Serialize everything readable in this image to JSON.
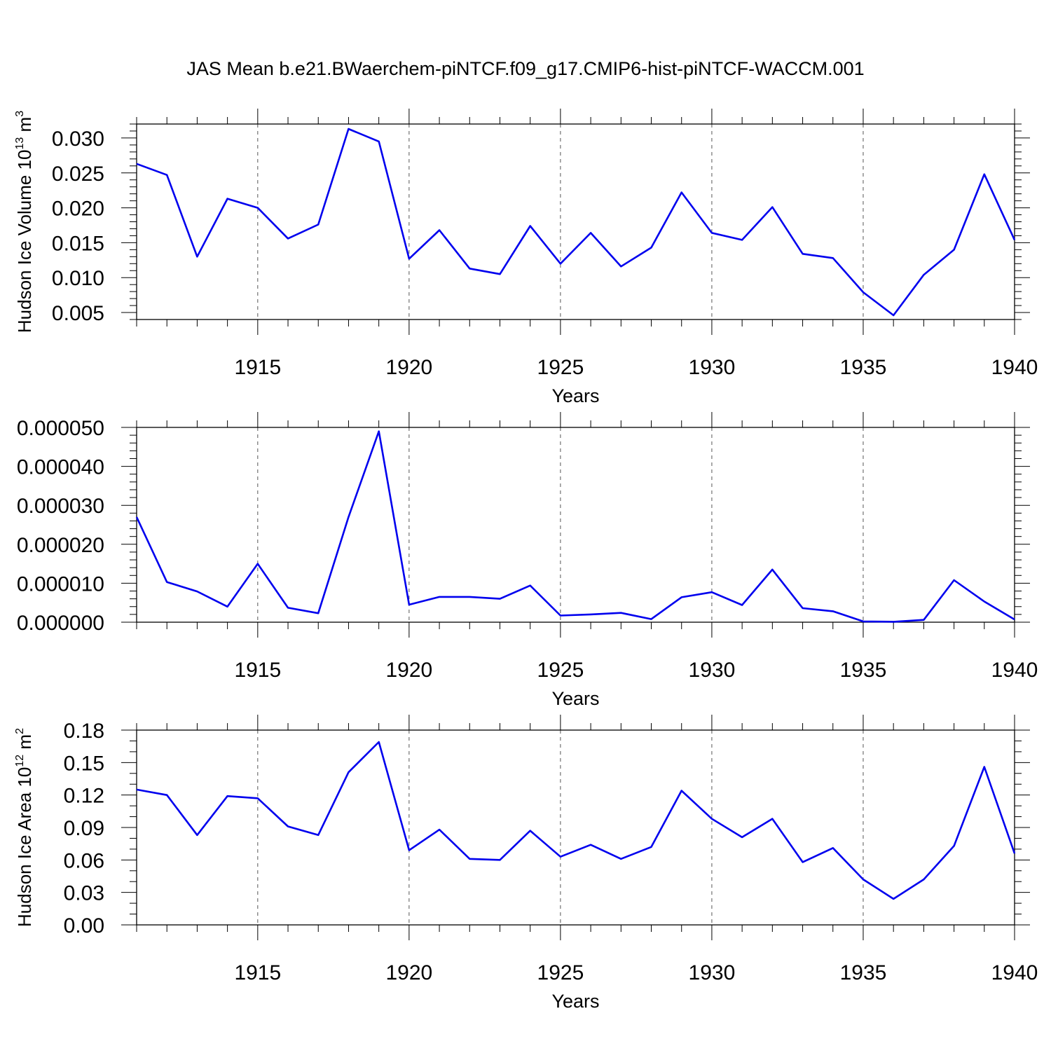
{
  "title": "JAS Mean b.e21.BWaerchem-piNTCF.f09_g17.CMIP6-hist-piNTCF-WACCM.001",
  "colors": {
    "line": "#0000ee",
    "axis": "#000000",
    "grid": "#555555"
  },
  "chart_data": [
    {
      "type": "line",
      "ylabel": "Hudson Ice Volume 10",
      "ylabel_sup": "13",
      "ylabel_unit": " m",
      "ylabel_unit_sup": "3",
      "xlabel": "Years",
      "xlim": [
        1911,
        1940
      ],
      "ylim": [
        0.004,
        0.032
      ],
      "xticks": [
        "1915",
        "1920",
        "1925",
        "1930",
        "1935",
        "1940"
      ],
      "yticks": [
        "0.005",
        "0.010",
        "0.015",
        "0.020",
        "0.025",
        "0.030"
      ],
      "x": [
        1911,
        1912,
        1913,
        1914,
        1915,
        1916,
        1917,
        1918,
        1919,
        1920,
        1921,
        1922,
        1923,
        1924,
        1925,
        1926,
        1927,
        1928,
        1929,
        1930,
        1931,
        1932,
        1933,
        1934,
        1935,
        1936,
        1937,
        1938,
        1939,
        1940
      ],
      "values": [
        0.0263,
        0.0247,
        0.013,
        0.0213,
        0.02,
        0.0156,
        0.0176,
        0.0313,
        0.0295,
        0.0127,
        0.0168,
        0.0113,
        0.0105,
        0.0174,
        0.012,
        0.0164,
        0.0116,
        0.0143,
        0.0222,
        0.0164,
        0.0154,
        0.0201,
        0.0134,
        0.0128,
        0.0079,
        0.0046,
        0.0104,
        0.014,
        0.0248,
        0.0154
      ]
    },
    {
      "type": "line",
      "ylabel": "",
      "xlabel": "Years",
      "xlim": [
        1911,
        1940
      ],
      "ylim": [
        0.0,
        5e-05
      ],
      "xticks": [
        "1915",
        "1920",
        "1925",
        "1930",
        "1935",
        "1940"
      ],
      "yticks": [
        "0.000000",
        "0.000010",
        "0.000020",
        "0.000030",
        "0.000040",
        "0.000050"
      ],
      "x": [
        1911,
        1912,
        1913,
        1914,
        1915,
        1916,
        1917,
        1918,
        1919,
        1920,
        1921,
        1922,
        1923,
        1924,
        1925,
        1926,
        1927,
        1928,
        1929,
        1930,
        1931,
        1932,
        1933,
        1934,
        1935,
        1936,
        1937,
        1938,
        1939,
        1940
      ],
      "values": [
        2.7e-05,
        1.03e-05,
        7.9e-06,
        4e-06,
        1.5e-05,
        3.7e-06,
        2.3e-06,
        2.7e-05,
        4.9e-05,
        4.5e-06,
        6.5e-06,
        6.5e-06,
        6e-06,
        9.4e-06,
        1.7e-06,
        2e-06,
        2.4e-06,
        8e-07,
        6.4e-06,
        7.7e-06,
        4.4e-06,
        1.35e-05,
        3.6e-06,
        2.8e-06,
        2e-07,
        1e-07,
        6e-07,
        1.08e-05,
        5.3e-06,
        7e-07
      ]
    },
    {
      "type": "line",
      "ylabel": "Hudson Ice Area 10",
      "ylabel_sup": "12",
      "ylabel_unit": " m",
      "ylabel_unit_sup": "2",
      "xlabel": "Years",
      "xlim": [
        1911,
        1940
      ],
      "ylim": [
        0.0,
        0.18
      ],
      "xticks": [
        "1915",
        "1920",
        "1925",
        "1930",
        "1935",
        "1940"
      ],
      "yticks": [
        "0.00",
        "0.03",
        "0.06",
        "0.09",
        "0.12",
        "0.15",
        "0.18"
      ],
      "x": [
        1911,
        1912,
        1913,
        1914,
        1915,
        1916,
        1917,
        1918,
        1919,
        1920,
        1921,
        1922,
        1923,
        1924,
        1925,
        1926,
        1927,
        1928,
        1929,
        1930,
        1931,
        1932,
        1933,
        1934,
        1935,
        1936,
        1937,
        1938,
        1939,
        1940
      ],
      "values": [
        0.125,
        0.12,
        0.083,
        0.119,
        0.117,
        0.091,
        0.083,
        0.141,
        0.169,
        0.069,
        0.088,
        0.061,
        0.06,
        0.087,
        0.063,
        0.074,
        0.061,
        0.072,
        0.124,
        0.098,
        0.081,
        0.098,
        0.058,
        0.071,
        0.042,
        0.024,
        0.042,
        0.073,
        0.146,
        0.066
      ]
    }
  ]
}
